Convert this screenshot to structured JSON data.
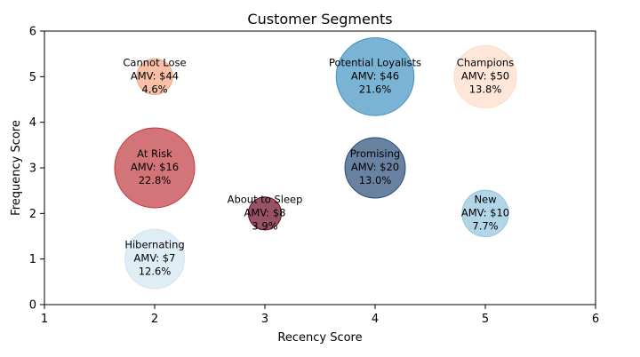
{
  "chart_data": {
    "type": "scatter",
    "title": "Customer Segments",
    "xlabel": "Recency Score",
    "ylabel": "Frequency Score",
    "xlim": [
      1,
      6
    ],
    "ylim": [
      0,
      6
    ],
    "xticks": [
      "1",
      "2",
      "3",
      "4",
      "5",
      "6"
    ],
    "yticks": [
      "0",
      "1",
      "2",
      "3",
      "4",
      "5",
      "6"
    ],
    "grid": false,
    "legend": "none",
    "points": [
      {
        "label": "Cannot Lose",
        "x": 2,
        "y": 5,
        "amv": "AMV: $44",
        "share": "4.6%",
        "share_value": 4.6,
        "color": "#f4a582"
      },
      {
        "label": "Potential Loyalists",
        "x": 4,
        "y": 5,
        "amv": "AMV: $46",
        "share": "21.6%",
        "share_value": 21.6,
        "color": "#4393c3"
      },
      {
        "label": "Champions",
        "x": 5,
        "y": 5,
        "amv": "AMV: $50",
        "share": "13.8%",
        "share_value": 13.8,
        "color": "#fddbc7"
      },
      {
        "label": "At Risk",
        "x": 2,
        "y": 3,
        "amv": "AMV: $16",
        "share": "22.8%",
        "share_value": 22.8,
        "color": "#c0393f"
      },
      {
        "label": "Promising",
        "x": 4,
        "y": 3,
        "amv": "AMV: $20",
        "share": "13.0%",
        "share_value": 13.0,
        "color": "#2a4d7a"
      },
      {
        "label": "About to Sleep",
        "x": 3,
        "y": 2,
        "amv": "AMV: $8",
        "share": "3.9%",
        "share_value": 3.9,
        "color": "#6b0a24"
      },
      {
        "label": "New",
        "x": 5,
        "y": 2,
        "amv": "AMV: $10",
        "share": "7.7%",
        "share_value": 7.7,
        "color": "#92c5de"
      },
      {
        "label": "Hibernating",
        "x": 2,
        "y": 1,
        "amv": "AMV: $7",
        "share": "12.6%",
        "share_value": 12.6,
        "color": "#d1e5f0"
      }
    ]
  }
}
